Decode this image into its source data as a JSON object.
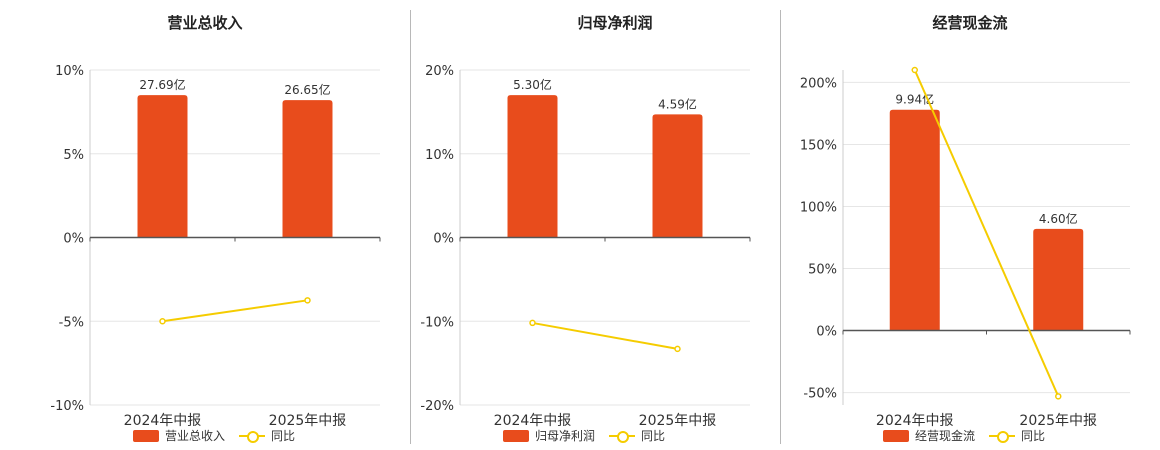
{
  "colors": {
    "bar": "#e84c1c",
    "line": "#f5cc00",
    "axis": "#555555",
    "grid": "#e6e6e6",
    "text": "#333333"
  },
  "chart_data": [
    {
      "type": "bar",
      "title": "营业总收入",
      "categories": [
        "2024年中报",
        "2025年中报"
      ],
      "series": [
        {
          "name": "营业总收入",
          "type": "bar",
          "values": [
            8.5,
            8.2
          ],
          "labels": [
            "27.69亿",
            "26.65亿"
          ]
        },
        {
          "name": "同比",
          "type": "line",
          "values": [
            -5.0,
            -3.75
          ]
        }
      ],
      "ylim": [
        -10,
        10
      ],
      "yticks": [
        10,
        5,
        0,
        -5,
        -10
      ],
      "ytick_labels": [
        "10%",
        "5%",
        "0%",
        "-5%",
        "-10%"
      ],
      "legend": "bottom"
    },
    {
      "type": "bar",
      "title": "归母净利润",
      "categories": [
        "2024年中报",
        "2025年中报"
      ],
      "series": [
        {
          "name": "归母净利润",
          "type": "bar",
          "values": [
            17.0,
            14.7
          ],
          "labels": [
            "5.30亿",
            "4.59亿"
          ]
        },
        {
          "name": "同比",
          "type": "line",
          "values": [
            -10.2,
            -13.3
          ]
        }
      ],
      "ylim": [
        -20,
        20
      ],
      "yticks": [
        20,
        10,
        0,
        -10,
        -20
      ],
      "ytick_labels": [
        "20%",
        "10%",
        "0%",
        "-10%",
        "-20%"
      ],
      "legend": "bottom"
    },
    {
      "type": "bar",
      "title": "经营现金流",
      "categories": [
        "2024年中报",
        "2025年中报"
      ],
      "series": [
        {
          "name": "经营现金流",
          "type": "bar",
          "values": [
            178,
            82
          ],
          "labels": [
            "9.94亿",
            "4.60亿"
          ]
        },
        {
          "name": "同比",
          "type": "line",
          "values": [
            210,
            -53
          ]
        }
      ],
      "ylim": [
        -60,
        210
      ],
      "yticks": [
        200,
        150,
        100,
        50,
        0,
        -50
      ],
      "ytick_labels": [
        "200%",
        "150%",
        "100%",
        "50%",
        "0%",
        "-50%"
      ],
      "legend": "bottom"
    }
  ]
}
